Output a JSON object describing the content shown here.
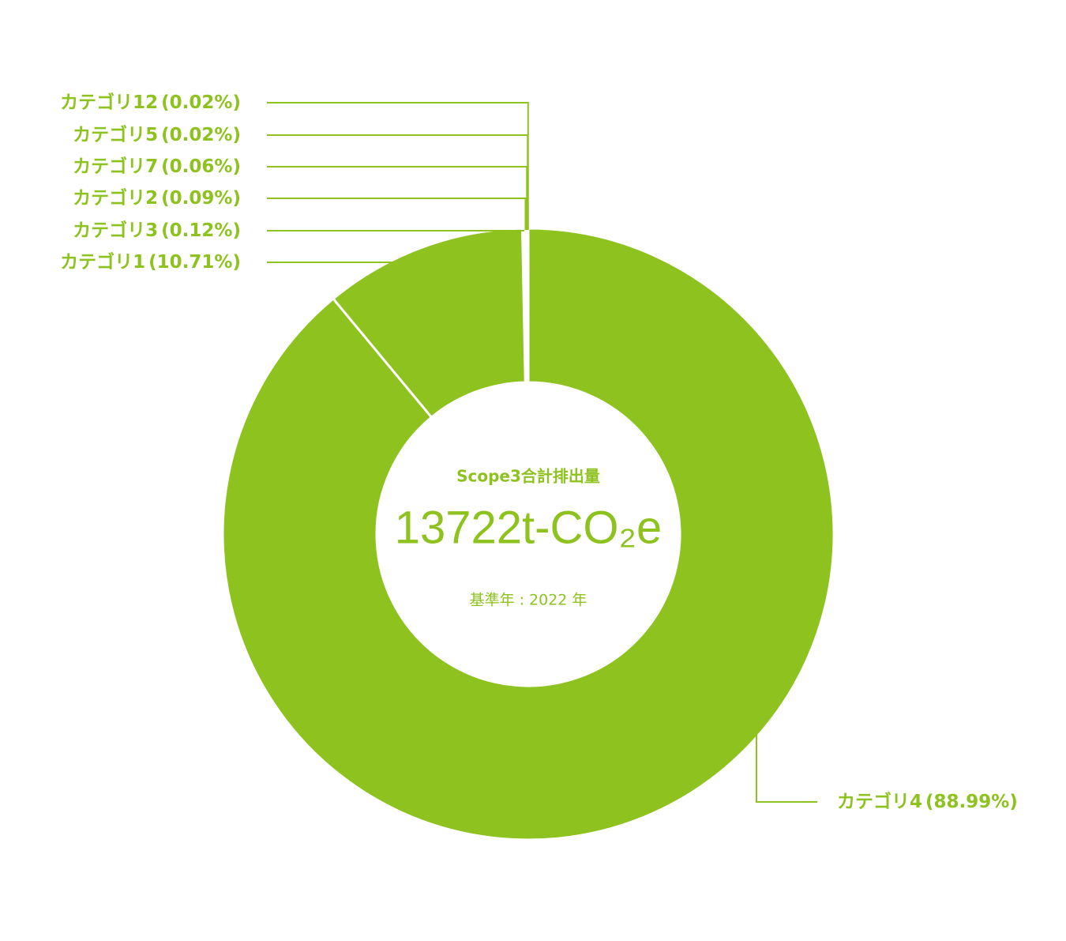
{
  "chart_data": {
    "type": "donut",
    "categories": [
      "カテゴリ4",
      "カテゴリ1",
      "カテゴリ3",
      "カテゴリ2",
      "カテゴリ7",
      "カテゴリ5",
      "カテゴリ12"
    ],
    "values": [
      88.99,
      10.71,
      0.12,
      0.09,
      0.06,
      0.02,
      0.02
    ],
    "value_labels": [
      "(88.99%)",
      "(10.71%)",
      "(0.12%)",
      "(0.09%)",
      "(0.06%)",
      "(0.02%)",
      "(0.02%)"
    ],
    "color": "#8dc21f",
    "center_title": "Scope3合計排出量",
    "center_value": "13722t-CO₂e",
    "center_note": "基準年 : 2022 年"
  }
}
